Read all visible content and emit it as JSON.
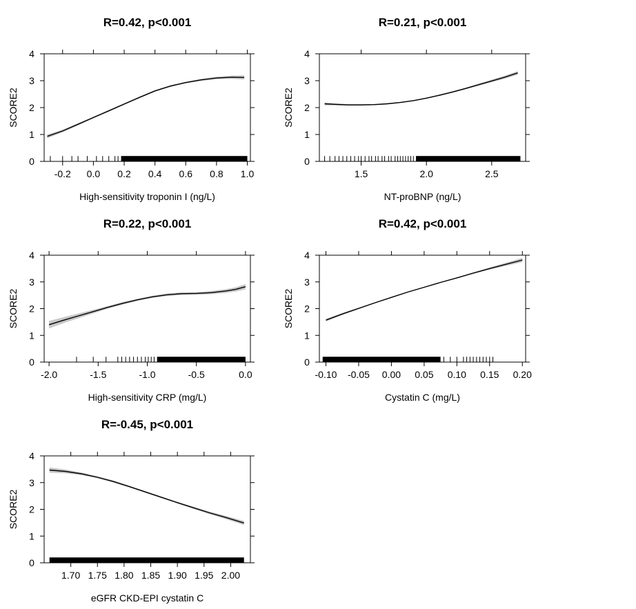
{
  "chart_data": [
    {
      "type": "line",
      "title": "R=0.42, p<0.001",
      "xlabel": "High-sensitivity troponin I (ng/L)",
      "ylabel": "SCORE2",
      "xlim": [
        -0.32,
        1.02
      ],
      "ylim": [
        0,
        4
      ],
      "xticks": [
        -0.2,
        0.0,
        0.2,
        0.4,
        0.6,
        0.8,
        1.0
      ],
      "xtick_labels": [
        "-0.2",
        "0.0",
        "0.2",
        "0.4",
        "0.6",
        "0.8",
        "1.0"
      ],
      "yticks": [
        0,
        1,
        2,
        3,
        4
      ],
      "ytick_labels": [
        "0",
        "1",
        "2",
        "3",
        "4"
      ],
      "grid": false,
      "legend": "none",
      "line_color": "#000000",
      "band_color": "#c8c8c8",
      "curve": {
        "x": [
          -0.3,
          -0.2,
          -0.1,
          0.0,
          0.1,
          0.2,
          0.3,
          0.4,
          0.5,
          0.6,
          0.7,
          0.8,
          0.9,
          0.98
        ],
        "y": [
          0.93,
          1.13,
          1.38,
          1.63,
          1.88,
          2.13,
          2.38,
          2.62,
          2.8,
          2.93,
          3.03,
          3.1,
          3.13,
          3.12
        ],
        "band": [
          0.07,
          0.05,
          0.04,
          0.03,
          0.03,
          0.03,
          0.03,
          0.03,
          0.03,
          0.03,
          0.04,
          0.05,
          0.06,
          0.08
        ]
      },
      "rug": {
        "sparse": [
          -0.28,
          -0.2,
          -0.14,
          -0.1,
          -0.04,
          0.02,
          0.06,
          0.1,
          0.14,
          0.16
        ],
        "dense_range": [
          0.18,
          1.0
        ]
      }
    },
    {
      "type": "line",
      "title": "R=0.21, p<0.001",
      "xlabel": "NT-proBNP (ng/L)",
      "ylabel": "SCORE2",
      "xlim": [
        1.18,
        2.76
      ],
      "ylim": [
        0,
        4
      ],
      "xticks": [
        1.5,
        2.0,
        2.5
      ],
      "xtick_labels": [
        "1.5",
        "2.0",
        "2.5"
      ],
      "yticks": [
        0,
        1,
        2,
        3,
        4
      ],
      "ytick_labels": [
        "0",
        "1",
        "2",
        "3",
        "4"
      ],
      "grid": false,
      "legend": "none",
      "line_color": "#000000",
      "band_color": "#c8c8c8",
      "curve": {
        "x": [
          1.22,
          1.3,
          1.4,
          1.5,
          1.6,
          1.7,
          1.8,
          1.9,
          2.0,
          2.1,
          2.2,
          2.3,
          2.4,
          2.5,
          2.6,
          2.7
        ],
        "y": [
          2.14,
          2.12,
          2.1,
          2.1,
          2.11,
          2.14,
          2.19,
          2.26,
          2.35,
          2.46,
          2.58,
          2.71,
          2.85,
          2.99,
          3.13,
          3.29
        ],
        "band": [
          0.06,
          0.04,
          0.03,
          0.03,
          0.02,
          0.02,
          0.02,
          0.02,
          0.02,
          0.03,
          0.03,
          0.03,
          0.04,
          0.05,
          0.06,
          0.07
        ]
      },
      "rug": {
        "sparse": [
          1.22,
          1.26,
          1.3,
          1.33,
          1.36,
          1.39,
          1.42,
          1.45,
          1.48,
          1.5,
          1.53,
          1.56,
          1.58,
          1.61,
          1.63,
          1.66,
          1.68,
          1.71,
          1.73,
          1.76,
          1.78,
          1.8,
          1.82,
          1.84,
          1.86,
          1.88,
          1.9
        ],
        "dense_range": [
          1.92,
          2.72
        ]
      }
    },
    {
      "type": "line",
      "title": "R=0.22, p<0.001",
      "xlabel": "High-sensitivity CRP (mg/L)",
      "ylabel": "SCORE2",
      "xlim": [
        -2.05,
        0.05
      ],
      "ylim": [
        0,
        4
      ],
      "xticks": [
        -2.0,
        -1.5,
        -1.0,
        -0.5,
        0.0
      ],
      "xtick_labels": [
        "-2.0",
        "-1.5",
        "-1.0",
        "-0.5",
        "0.0"
      ],
      "yticks": [
        0,
        1,
        2,
        3,
        4
      ],
      "ytick_labels": [
        "0",
        "1",
        "2",
        "3",
        "4"
      ],
      "grid": false,
      "legend": "none",
      "line_color": "#000000",
      "band_color": "#c8c8c8",
      "curve": {
        "x": [
          -2.0,
          -1.85,
          -1.7,
          -1.55,
          -1.4,
          -1.25,
          -1.1,
          -0.95,
          -0.8,
          -0.65,
          -0.5,
          -0.35,
          -0.2,
          -0.1,
          0.0
        ],
        "y": [
          1.4,
          1.57,
          1.73,
          1.89,
          2.05,
          2.2,
          2.33,
          2.44,
          2.52,
          2.56,
          2.57,
          2.6,
          2.66,
          2.72,
          2.82
        ],
        "band": [
          0.14,
          0.11,
          0.09,
          0.07,
          0.05,
          0.05,
          0.04,
          0.04,
          0.05,
          0.05,
          0.05,
          0.06,
          0.07,
          0.08,
          0.1
        ]
      },
      "rug": {
        "sparse": [
          -1.72,
          -1.55,
          -1.42,
          -1.3,
          -1.26,
          -1.22,
          -1.18,
          -1.14,
          -1.1,
          -1.06,
          -1.02,
          -0.99,
          -0.96,
          -0.93
        ],
        "dense_range": [
          -0.9,
          0.0
        ]
      }
    },
    {
      "type": "line",
      "title": "R=0.42, p<0.001",
      "xlabel": "Cystatin C (mg/L)",
      "ylabel": "SCORE2",
      "xlim": [
        -0.11,
        0.205
      ],
      "ylim": [
        0,
        4
      ],
      "xticks": [
        -0.1,
        -0.05,
        0.0,
        0.05,
        0.1,
        0.15,
        0.2
      ],
      "xtick_labels": [
        "-0.10",
        "-0.05",
        "0.00",
        "0.05",
        "0.10",
        "0.15",
        "0.20"
      ],
      "yticks": [
        0,
        1,
        2,
        3,
        4
      ],
      "ytick_labels": [
        "0",
        "1",
        "2",
        "3",
        "4"
      ],
      "grid": false,
      "legend": "none",
      "line_color": "#000000",
      "band_color": "#c8c8c8",
      "curve": {
        "x": [
          -0.1,
          -0.075,
          -0.05,
          -0.025,
          0.0,
          0.025,
          0.05,
          0.075,
          0.1,
          0.125,
          0.15,
          0.175,
          0.2
        ],
        "y": [
          1.57,
          1.8,
          2.01,
          2.22,
          2.42,
          2.62,
          2.8,
          2.98,
          3.15,
          3.33,
          3.5,
          3.66,
          3.82
        ],
        "band": [
          0.05,
          0.04,
          0.03,
          0.02,
          0.02,
          0.02,
          0.02,
          0.02,
          0.02,
          0.03,
          0.04,
          0.06,
          0.08
        ]
      },
      "rug": {
        "sparse": [
          0.08,
          0.09,
          0.1,
          0.11,
          0.115,
          0.12,
          0.125,
          0.13,
          0.135,
          0.14,
          0.145,
          0.15,
          0.155
        ],
        "dense_range": [
          -0.105,
          0.075
        ]
      }
    },
    {
      "type": "line",
      "title": "R=-0.45, p<0.001",
      "xlabel": "eGFR CKD-EPI cystatin C",
      "ylabel": "SCORE2",
      "xlim": [
        1.65,
        2.037
      ],
      "ylim": [
        0,
        4
      ],
      "xticks": [
        1.7,
        1.75,
        1.8,
        1.85,
        1.9,
        1.95,
        2.0
      ],
      "xtick_labels": [
        "1.70",
        "1.75",
        "1.80",
        "1.85",
        "1.90",
        "1.95",
        "2.00"
      ],
      "yticks": [
        0,
        1,
        2,
        3,
        4
      ],
      "ytick_labels": [
        "0",
        "1",
        "2",
        "3",
        "4"
      ],
      "grid": false,
      "legend": "none",
      "line_color": "#000000",
      "band_color": "#c8c8c8",
      "curve": {
        "x": [
          1.66,
          1.69,
          1.72,
          1.75,
          1.78,
          1.81,
          1.84,
          1.87,
          1.9,
          1.93,
          1.96,
          1.99,
          2.025
        ],
        "y": [
          3.47,
          3.42,
          3.33,
          3.2,
          3.04,
          2.85,
          2.65,
          2.45,
          2.25,
          2.06,
          1.87,
          1.7,
          1.49
        ],
        "band": [
          0.1,
          0.07,
          0.05,
          0.04,
          0.04,
          0.03,
          0.03,
          0.03,
          0.03,
          0.04,
          0.05,
          0.06,
          0.08
        ]
      },
      "rug": {
        "sparse": [],
        "dense_range": [
          1.66,
          2.025
        ]
      }
    }
  ]
}
